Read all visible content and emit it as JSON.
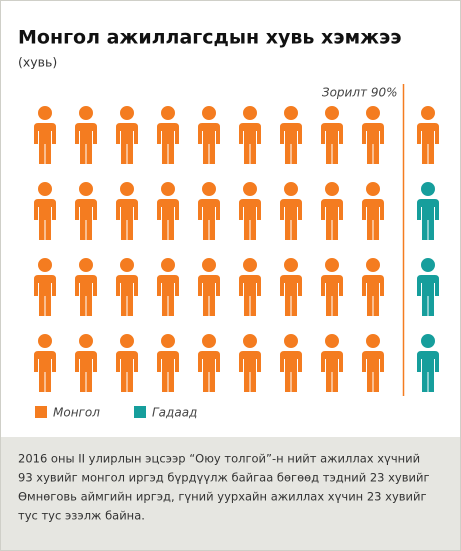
{
  "chart_data": {
    "type": "pictogram",
    "title": "Монгол ажиллагсдын хувь хэмжээ",
    "subtitle": "(хувь)",
    "columns": 10,
    "rows": 4,
    "series": [
      {
        "name": "Монгол",
        "color": "#f47c20",
        "count": 37
      },
      {
        "name": "Гадаад",
        "color": "#169e9c",
        "count": 3
      }
    ],
    "target": {
      "value": 90,
      "label": "Зорилт 90%"
    },
    "xlim": [
      0,
      100
    ],
    "caption": [
      "2016 оны II улирлын эцсээр “Оюу толгой”-н нийт ажиллах хүчний",
      "93 хувийг монгол иргэд бүрдүүлж байгаа бөгөөд тэдний 23 хувийг",
      "Өмнөговь аймгийн иргэд, гүний уурхайн ажиллах хүчин 23 хувийг",
      "тус тус эзэлж байна."
    ]
  }
}
